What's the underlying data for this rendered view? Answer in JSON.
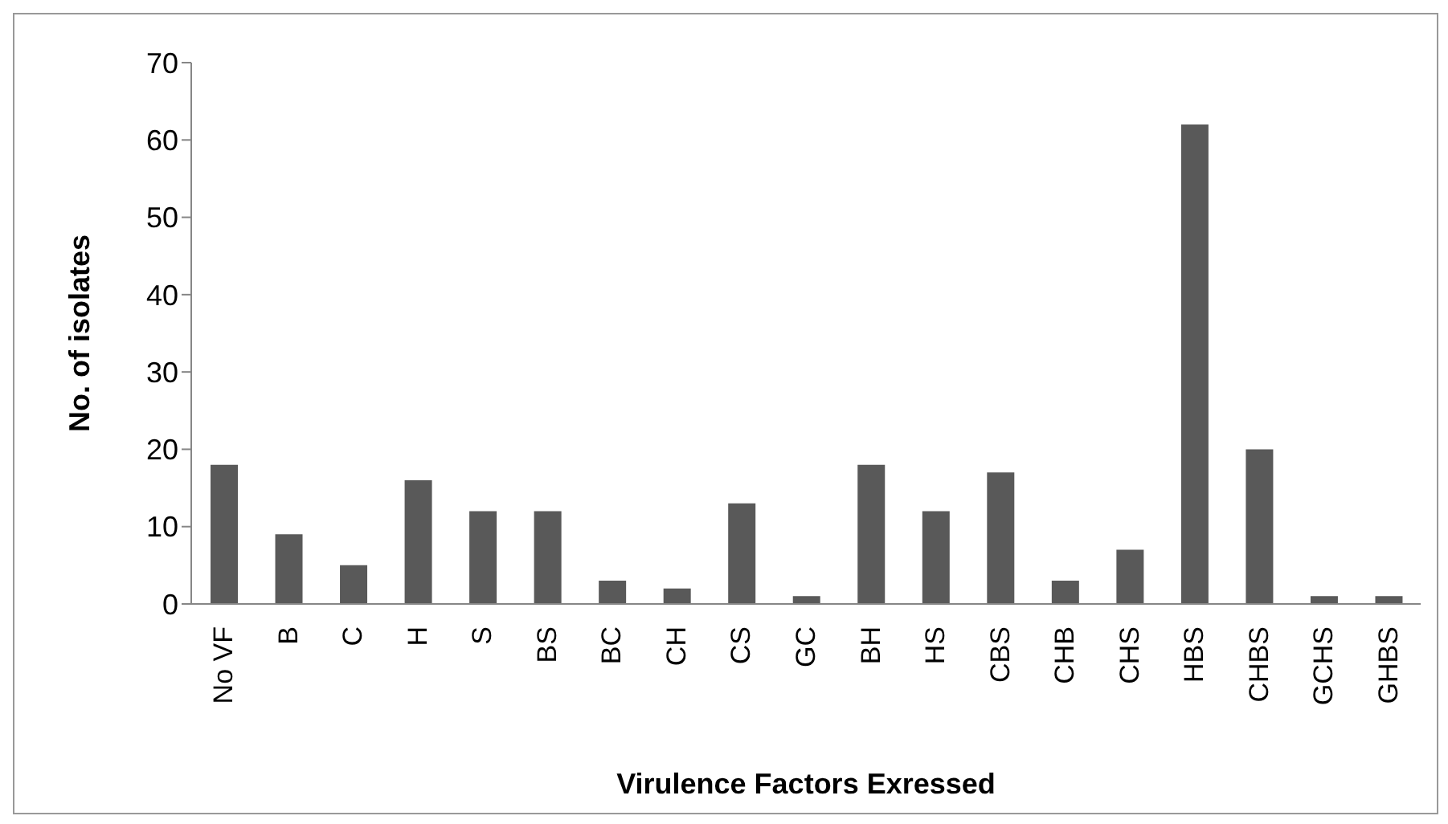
{
  "chart_data": {
    "type": "bar",
    "xlabel": "Virulence Factors Exressed",
    "ylabel": "No. of isolates",
    "categories": [
      "No VF",
      "B",
      "C",
      "H",
      "S",
      "BS",
      "BC",
      "CH",
      "CS",
      "GC",
      "BH",
      "HS",
      "CBS",
      "CHB",
      "CHS",
      "HBS",
      "CHBS",
      "GCHS",
      "GHBS"
    ],
    "values": [
      18,
      9,
      5,
      16,
      12,
      12,
      3,
      2,
      13,
      1,
      18,
      12,
      17,
      3,
      7,
      62,
      20,
      1,
      1
    ],
    "color": "#595959",
    "ylim": [
      0,
      70
    ],
    "yticks": [
      0,
      10,
      20,
      30,
      40,
      50,
      60,
      70
    ],
    "grid": false,
    "legend": false
  }
}
